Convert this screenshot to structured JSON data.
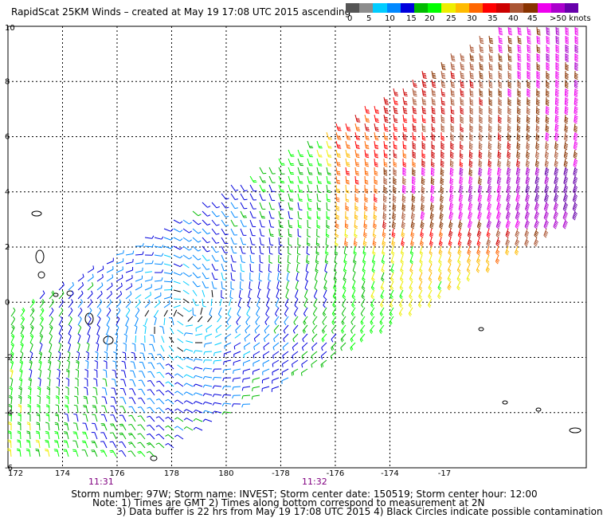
{
  "title": "RapidScat 25KM Winds – created at May 19 17:08 UTC 2015 ascending",
  "legend": {
    "labels": [
      "0",
      "5",
      "10",
      "15",
      "20",
      "25",
      "30",
      "35",
      "40",
      "45",
      ">50 knots"
    ],
    "colors": [
      "#555555",
      "#8c8c8c",
      "#00ccff",
      "#0088ff",
      "#0000dd",
      "#00bb00",
      "#00ff00",
      "#eeee00",
      "#ffbb00",
      "#ff6600",
      "#ff0000",
      "#cc0000",
      "#aa5533",
      "#883300",
      "#ee00ee",
      "#aa00cc",
      "#6600aa"
    ]
  },
  "map": {
    "lon_ticks": [
      "172",
      "174",
      "176",
      "178",
      "180",
      "-178",
      "-176",
      "-174",
      "-17"
    ],
    "lat_ticks": [
      "10",
      "8",
      "6",
      "4",
      "2",
      "0",
      "-2",
      "-4",
      "-6"
    ],
    "lon_range": [
      172,
      193.2
    ],
    "lat_range": [
      -6,
      10
    ],
    "grid": true
  },
  "times": {
    "t1": "11:31",
    "t2": "11:32"
  },
  "footer": {
    "line1": "Storm number: 97W;  Storm name: INVEST;  Storm center date: 150519;  Storm center hour: 12:00",
    "line2": "Note: 1) Times are GMT  2) Times along bottom correspond to measurement at 2N",
    "line3": "3) Data buffer is 22 hrs from May 19 17:08 UTC 2015   4) Black Circles indicate possible contamination"
  }
}
